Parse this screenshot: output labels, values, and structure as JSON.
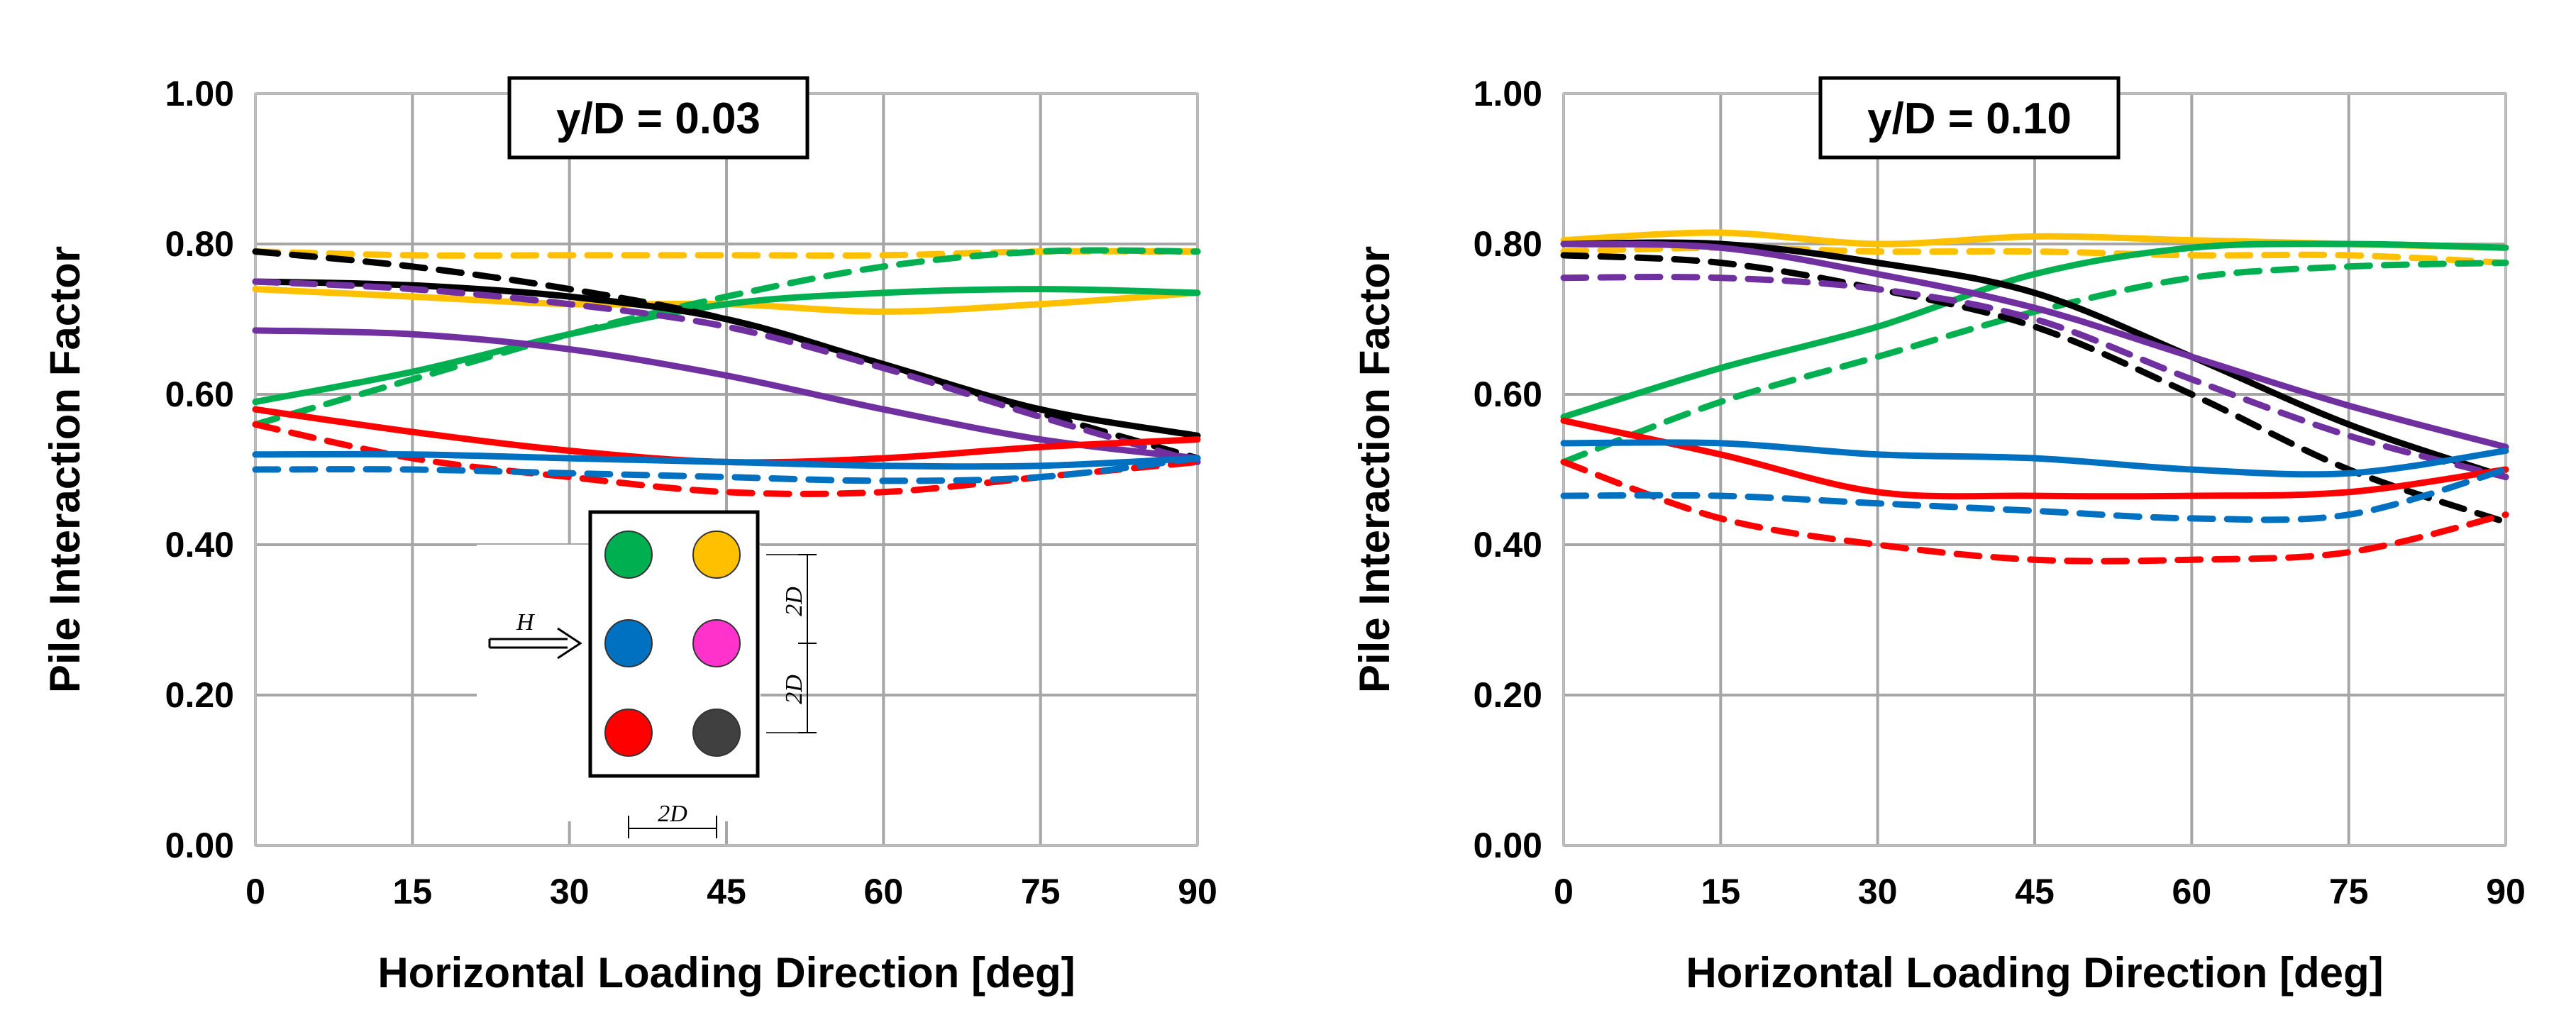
{
  "chart_data": [
    {
      "type": "line",
      "title": "y/D = 0.03",
      "xlabel": "Horizontal Loading Direction [deg]",
      "ylabel": "Pile Interaction Factor",
      "xlim": [
        0,
        90
      ],
      "ylim": [
        0,
        1
      ],
      "xticks": [
        "0",
        "15",
        "30",
        "45",
        "60",
        "75",
        "90"
      ],
      "yticks": [
        "0.00",
        "0.20",
        "0.40",
        "0.60",
        "0.80",
        "1.00"
      ],
      "grid": true,
      "series": [
        {
          "name": "orange",
          "color": "#ffc000",
          "dash": false,
          "points": [
            [
              0,
              0.74
            ],
            [
              15,
              0.73
            ],
            [
              30,
              0.72
            ],
            [
              45,
              0.72
            ],
            [
              60,
              0.71
            ],
            [
              75,
              0.72
            ],
            [
              90,
              0.735
            ]
          ]
        },
        {
          "name": "orange-dashed",
          "color": "#ffc000",
          "dash": true,
          "points": [
            [
              0,
              0.79
            ],
            [
              15,
              0.785
            ],
            [
              30,
              0.785
            ],
            [
              45,
              0.785
            ],
            [
              60,
              0.785
            ],
            [
              75,
              0.79
            ],
            [
              90,
              0.79
            ]
          ]
        },
        {
          "name": "green",
          "color": "#00b050",
          "dash": false,
          "points": [
            [
              0,
              0.59
            ],
            [
              15,
              0.63
            ],
            [
              30,
              0.68
            ],
            [
              45,
              0.72
            ],
            [
              60,
              0.735
            ],
            [
              75,
              0.74
            ],
            [
              90,
              0.735
            ]
          ]
        },
        {
          "name": "green-dashed",
          "color": "#00b050",
          "dash": true,
          "points": [
            [
              0,
              0.56
            ],
            [
              15,
              0.62
            ],
            [
              30,
              0.68
            ],
            [
              45,
              0.73
            ],
            [
              60,
              0.77
            ],
            [
              75,
              0.79
            ],
            [
              90,
              0.79
            ]
          ]
        },
        {
          "name": "black",
          "color": "#000000",
          "dash": false,
          "points": [
            [
              0,
              0.75
            ],
            [
              15,
              0.745
            ],
            [
              30,
              0.73
            ],
            [
              45,
              0.7
            ],
            [
              60,
              0.64
            ],
            [
              75,
              0.58
            ],
            [
              90,
              0.545
            ]
          ]
        },
        {
          "name": "black-dashed",
          "color": "#000000",
          "dash": true,
          "points": [
            [
              0,
              0.79
            ],
            [
              15,
              0.77
            ],
            [
              30,
              0.74
            ],
            [
              45,
              0.7
            ],
            [
              60,
              0.64
            ],
            [
              75,
              0.575
            ],
            [
              90,
              0.515
            ]
          ]
        },
        {
          "name": "purple",
          "color": "#7030a0",
          "dash": false,
          "points": [
            [
              0,
              0.685
            ],
            [
              15,
              0.68
            ],
            [
              30,
              0.66
            ],
            [
              45,
              0.625
            ],
            [
              60,
              0.58
            ],
            [
              75,
              0.54
            ],
            [
              90,
              0.515
            ]
          ]
        },
        {
          "name": "purple-dashed",
          "color": "#7030a0",
          "dash": true,
          "points": [
            [
              0,
              0.75
            ],
            [
              15,
              0.74
            ],
            [
              30,
              0.72
            ],
            [
              45,
              0.69
            ],
            [
              60,
              0.635
            ],
            [
              75,
              0.57
            ],
            [
              90,
              0.51
            ]
          ]
        },
        {
          "name": "red",
          "color": "#ff0000",
          "dash": false,
          "points": [
            [
              0,
              0.58
            ],
            [
              15,
              0.55
            ],
            [
              30,
              0.525
            ],
            [
              45,
              0.51
            ],
            [
              60,
              0.515
            ],
            [
              75,
              0.53
            ],
            [
              90,
              0.54
            ]
          ]
        },
        {
          "name": "red-dashed",
          "color": "#ff0000",
          "dash": true,
          "points": [
            [
              0,
              0.56
            ],
            [
              15,
              0.515
            ],
            [
              30,
              0.49
            ],
            [
              45,
              0.47
            ],
            [
              60,
              0.47
            ],
            [
              75,
              0.49
            ],
            [
              90,
              0.51
            ]
          ]
        },
        {
          "name": "blue",
          "color": "#0070c0",
          "dash": false,
          "points": [
            [
              0,
              0.52
            ],
            [
              15,
              0.52
            ],
            [
              30,
              0.515
            ],
            [
              45,
              0.51
            ],
            [
              60,
              0.505
            ],
            [
              75,
              0.505
            ],
            [
              90,
              0.515
            ]
          ]
        },
        {
          "name": "blue-dashed",
          "color": "#0070c0",
          "dash": true,
          "points": [
            [
              0,
              0.5
            ],
            [
              15,
              0.5
            ],
            [
              30,
              0.495
            ],
            [
              45,
              0.49
            ],
            [
              60,
              0.485
            ],
            [
              75,
              0.49
            ],
            [
              90,
              0.515
            ]
          ]
        }
      ],
      "inset": {
        "load_label": "H",
        "spacing_label": "2D",
        "pile_colors": [
          "#00b050",
          "#ffc000",
          "#0070c0",
          "#ff33cc",
          "#ff0000",
          "#404040"
        ]
      }
    },
    {
      "type": "line",
      "title": "y/D = 0.10",
      "xlabel": "Horizontal Loading Direction [deg]",
      "ylabel": "Pile Interaction Factor",
      "xlim": [
        0,
        90
      ],
      "ylim": [
        0,
        1
      ],
      "xticks": [
        "0",
        "15",
        "30",
        "45",
        "60",
        "75",
        "90"
      ],
      "yticks": [
        "0.00",
        "0.20",
        "0.40",
        "0.60",
        "0.80",
        "1.00"
      ],
      "grid": true,
      "series": [
        {
          "name": "orange",
          "color": "#ffc000",
          "dash": false,
          "points": [
            [
              0,
              0.805
            ],
            [
              15,
              0.815
            ],
            [
              30,
              0.8
            ],
            [
              45,
              0.81
            ],
            [
              60,
              0.805
            ],
            [
              75,
              0.8
            ],
            [
              90,
              0.795
            ]
          ]
        },
        {
          "name": "orange-dashed",
          "color": "#ffc000",
          "dash": true,
          "points": [
            [
              0,
              0.79
            ],
            [
              15,
              0.795
            ],
            [
              30,
              0.79
            ],
            [
              45,
              0.79
            ],
            [
              60,
              0.785
            ],
            [
              75,
              0.785
            ],
            [
              90,
              0.775
            ]
          ]
        },
        {
          "name": "green",
          "color": "#00b050",
          "dash": false,
          "points": [
            [
              0,
              0.57
            ],
            [
              15,
              0.635
            ],
            [
              30,
              0.69
            ],
            [
              45,
              0.76
            ],
            [
              60,
              0.795
            ],
            [
              75,
              0.8
            ],
            [
              90,
              0.795
            ]
          ]
        },
        {
          "name": "green-dashed",
          "color": "#00b050",
          "dash": true,
          "points": [
            [
              0,
              0.51
            ],
            [
              15,
              0.59
            ],
            [
              30,
              0.65
            ],
            [
              45,
              0.71
            ],
            [
              60,
              0.755
            ],
            [
              75,
              0.77
            ],
            [
              90,
              0.775
            ]
          ]
        },
        {
          "name": "black",
          "color": "#000000",
          "dash": false,
          "points": [
            [
              0,
              0.8
            ],
            [
              15,
              0.8
            ],
            [
              30,
              0.775
            ],
            [
              45,
              0.735
            ],
            [
              60,
              0.65
            ],
            [
              75,
              0.56
            ],
            [
              90,
              0.49
            ]
          ]
        },
        {
          "name": "black-dashed",
          "color": "#000000",
          "dash": true,
          "points": [
            [
              0,
              0.785
            ],
            [
              15,
              0.775
            ],
            [
              30,
              0.74
            ],
            [
              45,
              0.69
            ],
            [
              60,
              0.6
            ],
            [
              75,
              0.5
            ],
            [
              90,
              0.43
            ]
          ]
        },
        {
          "name": "purple",
          "color": "#7030a0",
          "dash": false,
          "points": [
            [
              0,
              0.8
            ],
            [
              15,
              0.795
            ],
            [
              30,
              0.76
            ],
            [
              45,
              0.715
            ],
            [
              60,
              0.65
            ],
            [
              75,
              0.585
            ],
            [
              90,
              0.53
            ]
          ]
        },
        {
          "name": "purple-dashed",
          "color": "#7030a0",
          "dash": true,
          "points": [
            [
              0,
              0.755
            ],
            [
              15,
              0.755
            ],
            [
              30,
              0.74
            ],
            [
              45,
              0.7
            ],
            [
              60,
              0.62
            ],
            [
              75,
              0.545
            ],
            [
              90,
              0.49
            ]
          ]
        },
        {
          "name": "red",
          "color": "#ff0000",
          "dash": false,
          "points": [
            [
              0,
              0.565
            ],
            [
              15,
              0.52
            ],
            [
              30,
              0.47
            ],
            [
              45,
              0.465
            ],
            [
              60,
              0.465
            ],
            [
              75,
              0.47
            ],
            [
              90,
              0.5
            ]
          ]
        },
        {
          "name": "red-dashed",
          "color": "#ff0000",
          "dash": true,
          "points": [
            [
              0,
              0.51
            ],
            [
              15,
              0.435
            ],
            [
              30,
              0.4
            ],
            [
              45,
              0.38
            ],
            [
              60,
              0.38
            ],
            [
              75,
              0.39
            ],
            [
              90,
              0.44
            ]
          ]
        },
        {
          "name": "blue",
          "color": "#0070c0",
          "dash": false,
          "points": [
            [
              0,
              0.535
            ],
            [
              15,
              0.535
            ],
            [
              30,
              0.52
            ],
            [
              45,
              0.515
            ],
            [
              60,
              0.5
            ],
            [
              75,
              0.495
            ],
            [
              90,
              0.525
            ]
          ]
        },
        {
          "name": "blue-dashed",
          "color": "#0070c0",
          "dash": true,
          "points": [
            [
              0,
              0.465
            ],
            [
              15,
              0.465
            ],
            [
              30,
              0.455
            ],
            [
              45,
              0.445
            ],
            [
              60,
              0.435
            ],
            [
              75,
              0.44
            ],
            [
              90,
              0.5
            ]
          ]
        }
      ]
    }
  ]
}
